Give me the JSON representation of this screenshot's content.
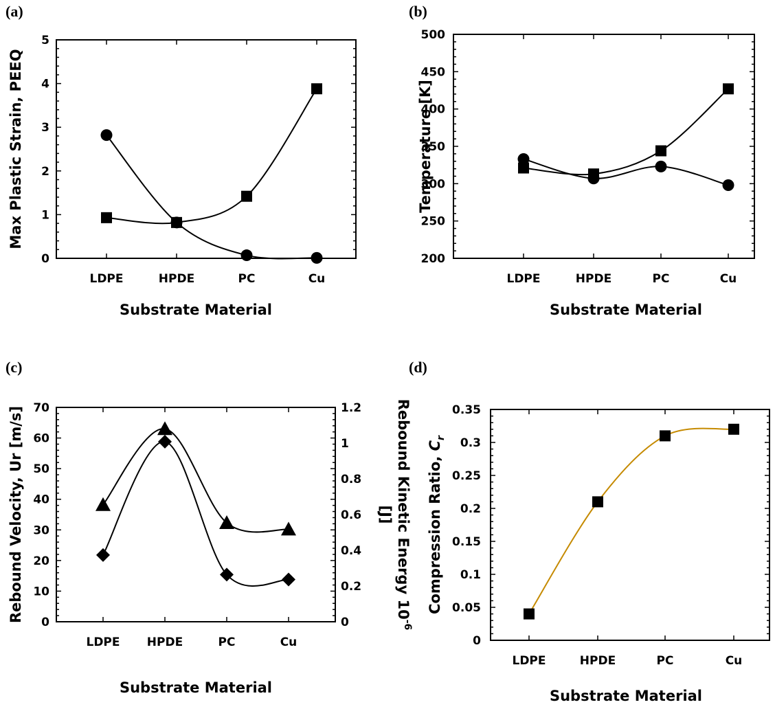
{
  "chart_data": [
    {
      "panel": "(a)",
      "type": "line",
      "categories": [
        "LDPE",
        "HPDE",
        "PC",
        "Cu"
      ],
      "xlabel": "Substrate Material",
      "ylabel": "Max Plastic Strain, PEEQ",
      "ylim": [
        0,
        5
      ],
      "yticks": [
        0,
        1,
        2,
        3,
        4,
        5
      ],
      "series": [
        {
          "marker": "circle",
          "values": [
            2.82,
            0.82,
            0.07,
            0.01
          ],
          "color": "#000000"
        },
        {
          "marker": "square",
          "values": [
            0.93,
            0.82,
            1.42,
            3.88
          ],
          "color": "#000000"
        }
      ],
      "grid": false
    },
    {
      "panel": "(b)",
      "type": "line",
      "categories": [
        "LDPE",
        "HPDE",
        "PC",
        "Cu"
      ],
      "xlabel": "Substrate Material",
      "ylabel": "Temperature [K]",
      "ylim": [
        200,
        500
      ],
      "yticks": [
        200,
        250,
        300,
        350,
        400,
        450,
        500
      ],
      "series": [
        {
          "marker": "circle",
          "values": [
            333,
            307,
            323,
            298
          ],
          "color": "#000000"
        },
        {
          "marker": "square",
          "values": [
            321,
            313,
            344,
            427
          ],
          "color": "#000000"
        }
      ],
      "grid": false
    },
    {
      "panel": "(c)",
      "type": "line",
      "categories": [
        "LDPE",
        "HPDE",
        "PC",
        "Cu"
      ],
      "xlabel": "Substrate Material",
      "ylabel": "Rebound Velocity, Ur [m/s]",
      "ylabel_right_main": "Rebound Kinetic Energy 10",
      "ylabel_right_sup": "-6",
      "ylabel_right_unit": "[J]",
      "ylim": [
        0,
        70
      ],
      "yticks": [
        0,
        10,
        20,
        30,
        40,
        50,
        60,
        70
      ],
      "ylim_right": [
        0,
        1.2
      ],
      "yticks_right": [
        "0",
        "0.2",
        "0.4",
        "0.6",
        "0.8",
        "1",
        "1.2"
      ],
      "series": [
        {
          "marker": "triangle",
          "axis": "left",
          "values": [
            38.2,
            63.0,
            32.3,
            30.2
          ],
          "color": "#000000"
        },
        {
          "marker": "diamond",
          "axis": "left",
          "values": [
            21.8,
            58.8,
            15.4,
            13.8
          ],
          "color": "#000000"
        }
      ],
      "grid": false
    },
    {
      "panel": "(d)",
      "type": "line",
      "categories": [
        "LDPE",
        "HPDE",
        "PC",
        "Cu"
      ],
      "xlabel": "Substrate Material",
      "ylabel_main": "Compression Ratio, ",
      "ylabel_italic": "C",
      "ylabel_sub": "r",
      "ylim": [
        0,
        0.35
      ],
      "yticks": [
        "0",
        "0.05",
        "0.1",
        "0.15",
        "0.2",
        "0.25",
        "0.3",
        "0.35"
      ],
      "series": [
        {
          "marker": "square",
          "values": [
            0.04,
            0.21,
            0.31,
            0.32
          ],
          "color": "#000000",
          "line_color": "#c58a00"
        }
      ],
      "grid": false
    }
  ]
}
